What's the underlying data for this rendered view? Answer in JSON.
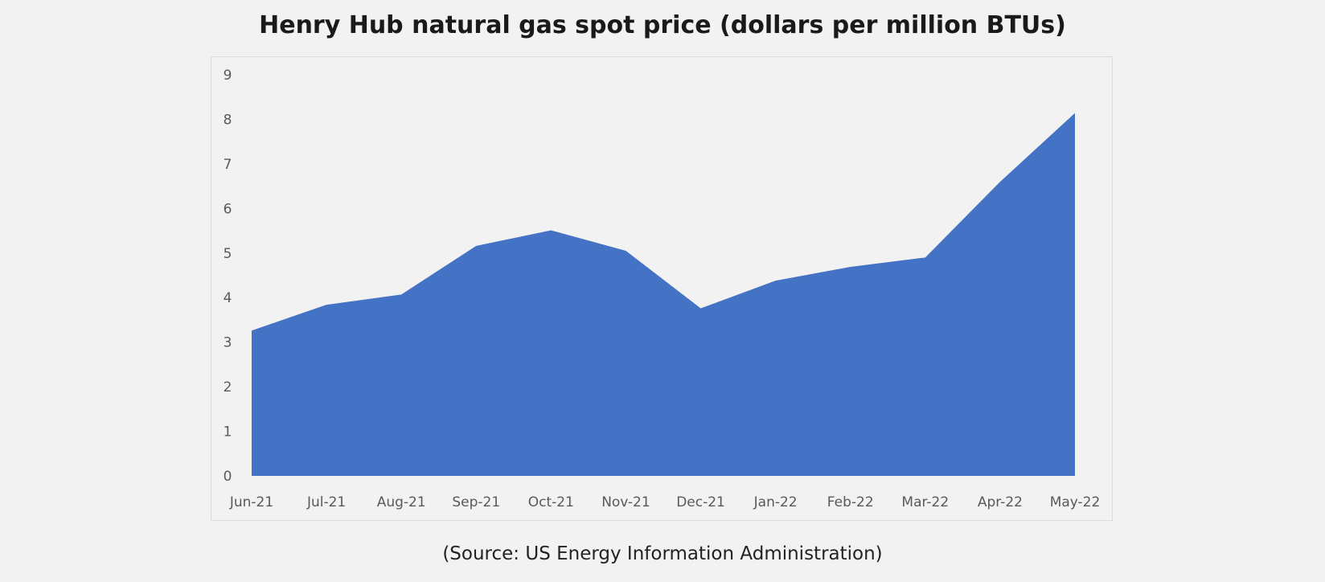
{
  "chart_data": {
    "type": "area",
    "title": "Henry Hub natural gas spot price (dollars per million BTUs)",
    "source": "(Source: US Energy Information Administration)",
    "categories": [
      "Jun-21",
      "Jul-21",
      "Aug-21",
      "Sep-21",
      "Oct-21",
      "Nov-21",
      "Dec-21",
      "Jan-22",
      "Feb-22",
      "Mar-22",
      "Apr-22",
      "May-22"
    ],
    "values": [
      3.26,
      3.84,
      4.07,
      5.16,
      5.51,
      5.05,
      3.76,
      4.38,
      4.69,
      4.9,
      6.6,
      8.14
    ],
    "yticks": [
      0,
      1,
      2,
      3,
      4,
      5,
      6,
      7,
      8,
      9
    ],
    "ylim": [
      0,
      9
    ],
    "xlabel": "",
    "ylabel": "",
    "grid": false,
    "legend": "none",
    "fill_color": "#4472c4"
  }
}
